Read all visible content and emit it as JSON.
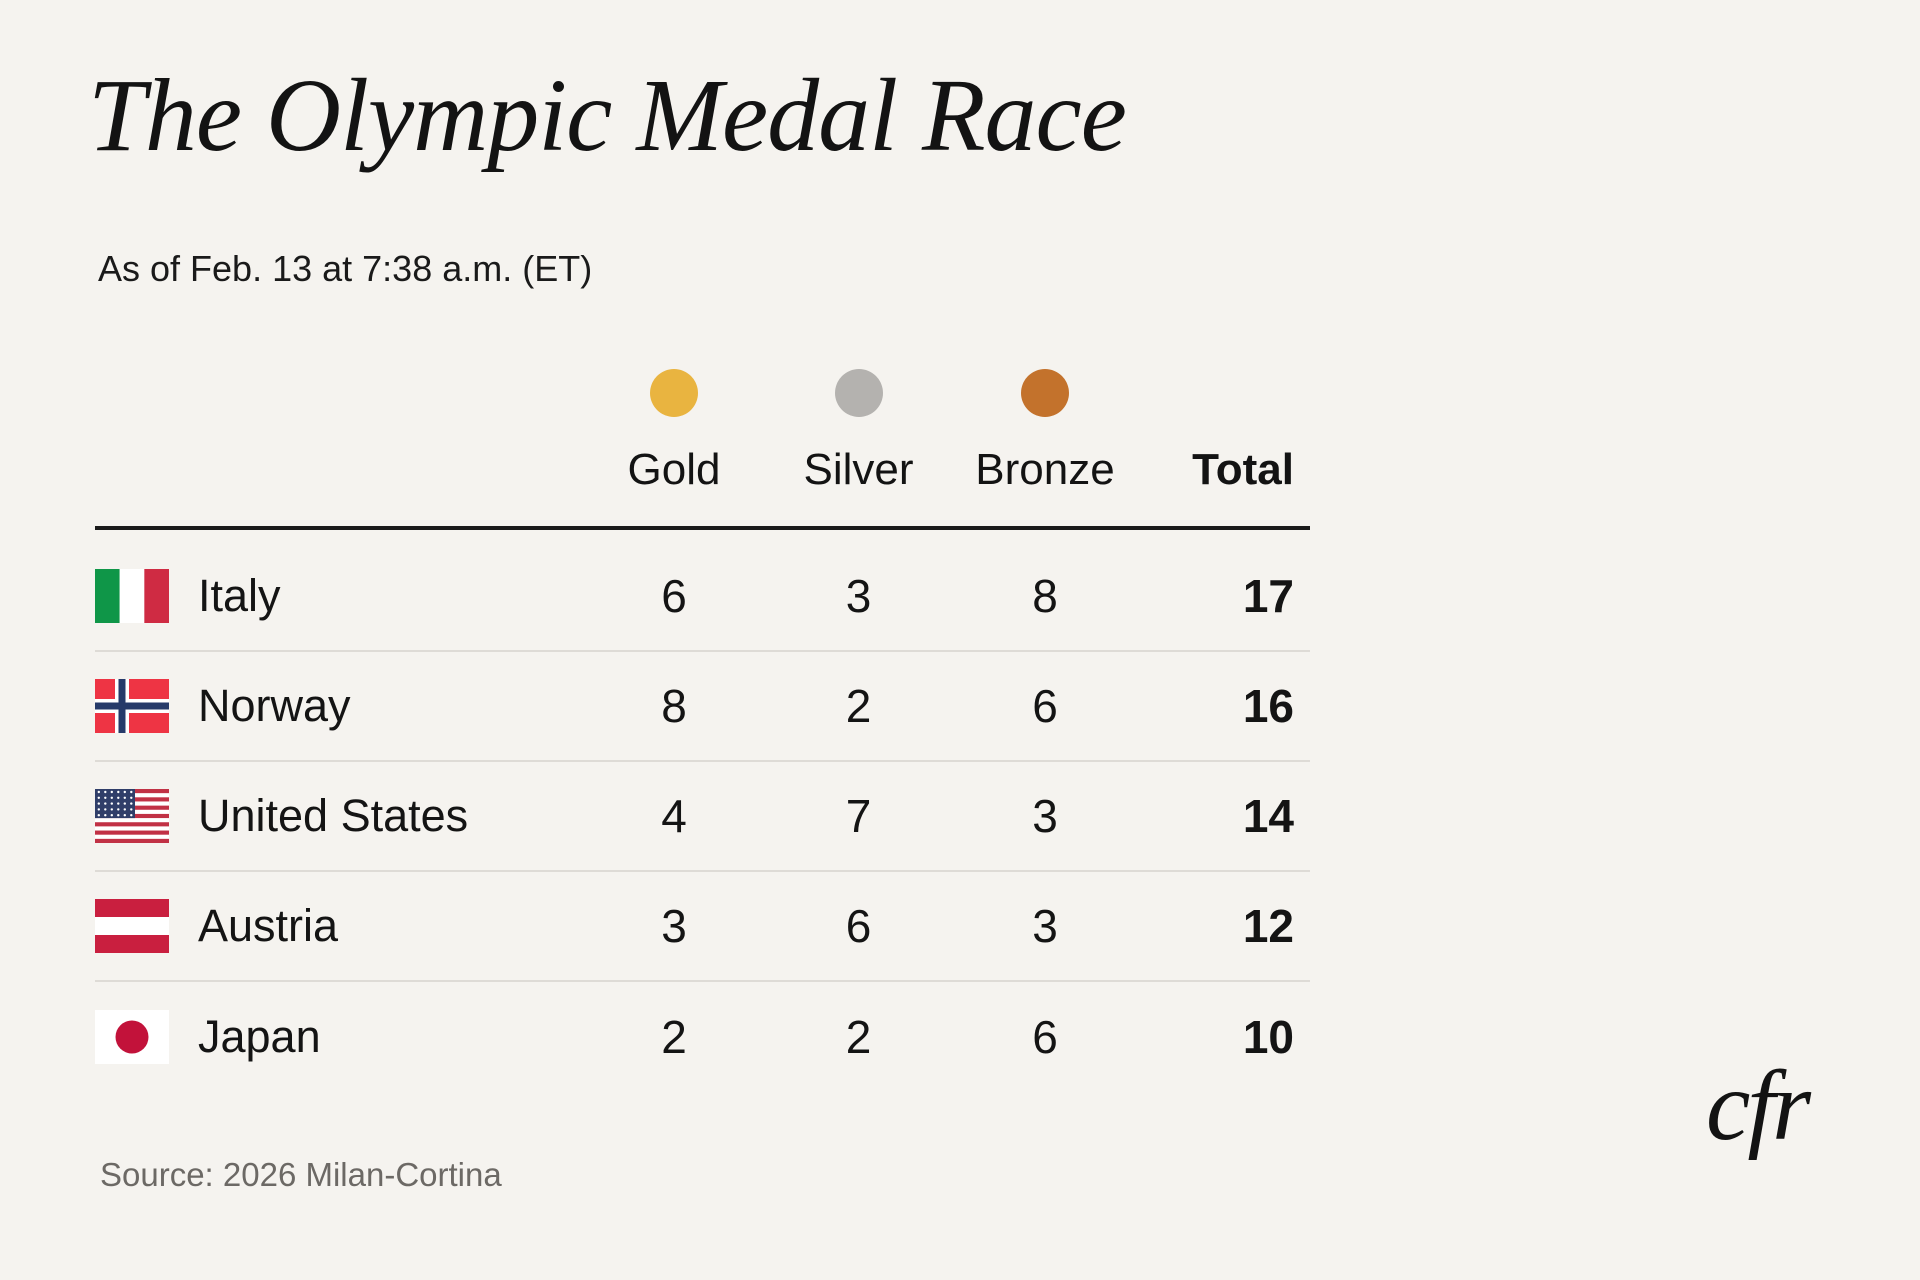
{
  "header": {
    "title": "The Olympic Medal Race",
    "subtitle": "As of Feb. 13 at 7:38 a.m. (ET)"
  },
  "chart_data": {
    "type": "table",
    "title": "The Olympic Medal Race",
    "subtitle": "As of Feb. 13 at 7:38 a.m. (ET)",
    "columns": [
      "Gold",
      "Silver",
      "Bronze",
      "Total"
    ],
    "rows": [
      {
        "country": "Italy",
        "gold": 6,
        "silver": 3,
        "bronze": 8,
        "total": 17
      },
      {
        "country": "Norway",
        "gold": 8,
        "silver": 2,
        "bronze": 6,
        "total": 16
      },
      {
        "country": "United States",
        "gold": 4,
        "silver": 7,
        "bronze": 3,
        "total": 14
      },
      {
        "country": "Austria",
        "gold": 3,
        "silver": 6,
        "bronze": 3,
        "total": 12
      },
      {
        "country": "Japan",
        "gold": 2,
        "silver": 2,
        "bronze": 6,
        "total": 10
      }
    ],
    "legend_position": "top",
    "grid": "horizontal-dividers",
    "source": "Source: 2026 Milan-Cortina"
  },
  "footer": {
    "source": "Source: 2026 Milan-Cortina",
    "logo_text": "cfr"
  },
  "colors": {
    "background": "#f5f3ef",
    "gold_dot": "#e9b440",
    "silver_dot": "#b4b2af",
    "bronze_dot": "#c3722c",
    "text": "#141414",
    "muted_text": "#6c6965",
    "header_rule": "#1a1a1a",
    "row_divider": "#dedbd6"
  }
}
